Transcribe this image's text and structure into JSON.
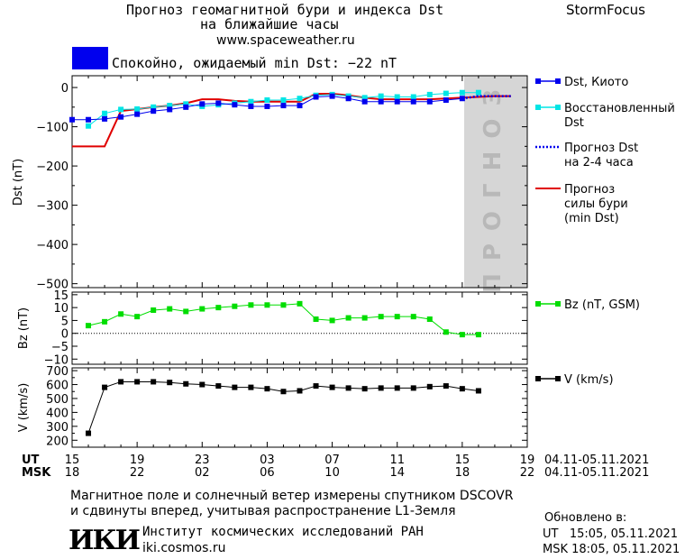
{
  "header": {
    "title_line1": "Прогноз геомагнитной бури и индекса Dst",
    "title_line2": "на ближайшие часы",
    "site": "www.spaceweather.ru",
    "brand": "StormFocus",
    "status_text": "Спокойно, ожидаемый min Dst: −22 nT",
    "status_color": "#0000ee"
  },
  "forecast_label": "ПРОГНОЗ",
  "legend": {
    "dst_kyoto": "Dst, Киото",
    "restored_line1": "Восстановленный",
    "restored_line2": "Dst",
    "forecast_dst_line1": "Прогноз Dst",
    "forecast_dst_line2": "на 2-4 часа",
    "storm_line1": "Прогноз",
    "storm_line2": "силы бури",
    "storm_line3": "(min Dst)",
    "bz": "Bz (nT, GSM)",
    "v": "V (km/s)"
  },
  "axes": {
    "dst_ylabel": "Dst (nT)",
    "bz_ylabel": "Bz (nT)",
    "v_ylabel": "V (km/s)",
    "ut_label": "UT",
    "msk_label": "MSK",
    "ut_ticks": [
      "15",
      "19",
      "23",
      "03",
      "07",
      "11",
      "15",
      "19"
    ],
    "msk_ticks": [
      "18",
      "22",
      "02",
      "06",
      "10",
      "14",
      "18",
      "22"
    ],
    "date_range_ut": "04.11-05.11.2021",
    "date_range_msk": "04.11-05.11.2021"
  },
  "footer": {
    "note_line1": "Магнитное поле и солнечный ветер измерены спутником DSCOVR",
    "note_line2": "и сдвинуты вперед, учитывая распространение L1-Земля",
    "institute": "Институт космических исследований РАН",
    "institute_site": "iki.cosmos.ru",
    "updated_label": "Обновлено в:",
    "updated_ut": "UT   15:05, 05.11.2021",
    "updated_msk": "MSK 18:05, 05.11.2021",
    "logo_text": "ИКИ"
  },
  "chart_data": [
    {
      "type": "line",
      "ylabel": "Dst (nT)",
      "xlabel": "UT",
      "xlim": [
        15,
        43
      ],
      "ylim": [
        -510,
        30
      ],
      "forecast_region_x": [
        39,
        43
      ],
      "series": [
        {
          "name": "Dst, Киото",
          "color": "#0000ee",
          "x": [
            15,
            16,
            17,
            18,
            19,
            20,
            21,
            22,
            23,
            24,
            25,
            26,
            27,
            28,
            29,
            30,
            31,
            32,
            33,
            34,
            35,
            36,
            37,
            38,
            39
          ],
          "y": [
            -82,
            -82,
            -80,
            -75,
            -68,
            -60,
            -56,
            -50,
            -42,
            -40,
            -44,
            -48,
            -48,
            -46,
            -46,
            -24,
            -22,
            -28,
            -36,
            -36,
            -36,
            -36,
            -36,
            -32,
            -28
          ]
        },
        {
          "name": "Восстановленный Dst",
          "color": "#00e5e5",
          "x": [
            16,
            17,
            18,
            19,
            20,
            21,
            22,
            23,
            24,
            25,
            26,
            27,
            28,
            29,
            30,
            31,
            32,
            33,
            34,
            35,
            36,
            37,
            38,
            39,
            40
          ],
          "y": [
            -98,
            -66,
            -56,
            -55,
            -50,
            -46,
            -42,
            -48,
            -44,
            -40,
            -36,
            -32,
            -32,
            -28,
            -20,
            -18,
            -22,
            -26,
            -22,
            -24,
            -24,
            -18,
            -15,
            -13,
            -13
          ]
        },
        {
          "name": "Прогноз Dst на 2-4 часа",
          "color": "#0000ee",
          "x": [
            39,
            40,
            42
          ],
          "y": [
            -28,
            -22,
            -22
          ]
        },
        {
          "name": "Прогноз силы бури (min Dst)",
          "color": "#e00000",
          "x": [
            15,
            17,
            18,
            19,
            20,
            21,
            22,
            23,
            24,
            25,
            26,
            27,
            28,
            29,
            30,
            31,
            32,
            33,
            34,
            35,
            36,
            37,
            38,
            39,
            40,
            41,
            42
          ],
          "y": [
            -150,
            -150,
            -60,
            -55,
            -50,
            -46,
            -40,
            -30,
            -30,
            -34,
            -36,
            -36,
            -36,
            -36,
            -16,
            -16,
            -20,
            -26,
            -30,
            -30,
            -30,
            -30,
            -28,
            -26,
            -24,
            -22,
            -22
          ]
        }
      ]
    },
    {
      "type": "line",
      "ylabel": "Bz (nT)",
      "ylim": [
        -12,
        16
      ],
      "series": [
        {
          "name": "Bz (nT, GSM)",
          "color": "#00dd00",
          "x": [
            16,
            17,
            18,
            19,
            20,
            21,
            22,
            23,
            24,
            25,
            26,
            27,
            28,
            29,
            30,
            31,
            32,
            33,
            34,
            35,
            36,
            37,
            38,
            39,
            40
          ],
          "y": [
            3,
            4.5,
            7.5,
            6.5,
            9,
            9.5,
            8.5,
            9.5,
            10,
            10.5,
            11,
            11,
            11,
            11.5,
            5.5,
            5,
            6,
            6,
            6.5,
            6.5,
            6.5,
            5.5,
            0.5,
            -0.5,
            -0.5
          ]
        }
      ]
    },
    {
      "type": "line",
      "ylabel": "V (km/s)",
      "ylim": [
        150,
        720
      ],
      "series": [
        {
          "name": "V (km/s)",
          "color": "#000000",
          "x": [
            16,
            17,
            18,
            19,
            20,
            21,
            22,
            23,
            24,
            25,
            26,
            27,
            28,
            29,
            30,
            31,
            32,
            33,
            34,
            35,
            36,
            37,
            38,
            39,
            40
          ],
          "y": [
            250,
            580,
            620,
            620,
            620,
            615,
            605,
            600,
            590,
            580,
            580,
            570,
            550,
            555,
            590,
            580,
            575,
            570,
            575,
            575,
            575,
            585,
            590,
            570,
            555
          ]
        }
      ]
    }
  ]
}
